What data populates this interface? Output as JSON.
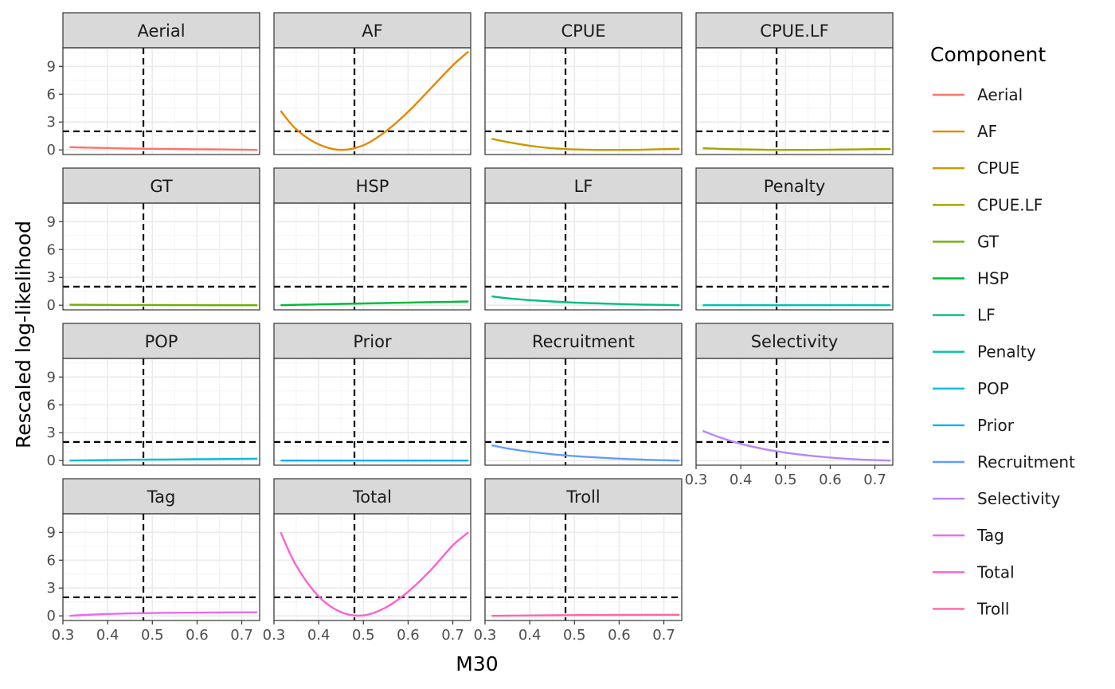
{
  "chart_data": {
    "type": "line",
    "xlabel": "M30",
    "ylabel": "Rescaled log-likelihood",
    "xlim": [
      0.3,
      0.74
    ],
    "ylim": [
      -0.5,
      11
    ],
    "x_ticks": [
      0.3,
      0.4,
      0.5,
      0.6,
      0.7
    ],
    "y_ticks": [
      0,
      3,
      6,
      9
    ],
    "x_tick_labels": [
      "0.3",
      "0.4",
      "0.5",
      "0.6",
      "0.7"
    ],
    "y_tick_labels": [
      "0",
      "3",
      "6",
      "9"
    ],
    "reference_lines": {
      "vertical_x": 0.48,
      "horizontal_y": 2,
      "style": "dashed",
      "color": "#000000"
    },
    "grid": true,
    "facet_layout": {
      "ncol": 4,
      "nrow": 4
    },
    "legend": {
      "title": "Component",
      "position": "right"
    },
    "x": [
      0.315,
      0.35,
      0.4,
      0.45,
      0.5,
      0.55,
      0.6,
      0.65,
      0.7,
      0.735
    ],
    "series": [
      {
        "name": "Aerial",
        "color": "#F8766D",
        "values": [
          0.3,
          0.25,
          0.2,
          0.15,
          0.12,
          0.1,
          0.07,
          0.05,
          0.02,
          0.0
        ]
      },
      {
        "name": "AF",
        "color": "#E58700",
        "values": [
          4.2,
          2.2,
          0.6,
          0.0,
          0.5,
          2.0,
          4.1,
          6.6,
          9.1,
          10.6
        ]
      },
      {
        "name": "CPUE",
        "color": "#C99800",
        "values": [
          1.2,
          0.85,
          0.45,
          0.18,
          0.05,
          0.0,
          0.0,
          0.02,
          0.08,
          0.12
        ]
      },
      {
        "name": "CPUE.LF",
        "color": "#A3A500",
        "values": [
          0.18,
          0.12,
          0.06,
          0.02,
          0.0,
          0.0,
          0.02,
          0.05,
          0.08,
          0.1
        ]
      },
      {
        "name": "GT",
        "color": "#6BB100",
        "values": [
          0.05,
          0.04,
          0.03,
          0.02,
          0.02,
          0.01,
          0.01,
          0.0,
          0.0,
          0.0
        ]
      },
      {
        "name": "HSP",
        "color": "#00BA38",
        "values": [
          0.0,
          0.04,
          0.09,
          0.14,
          0.19,
          0.24,
          0.28,
          0.33,
          0.37,
          0.4
        ]
      },
      {
        "name": "LF",
        "color": "#00BF7D",
        "values": [
          0.95,
          0.75,
          0.55,
          0.4,
          0.28,
          0.2,
          0.13,
          0.07,
          0.03,
          0.0
        ]
      },
      {
        "name": "Penalty",
        "color": "#00C0AF",
        "values": [
          0,
          0,
          0,
          0,
          0,
          0,
          0,
          0,
          0,
          0
        ]
      },
      {
        "name": "POP",
        "color": "#00BCD8",
        "values": [
          0.0,
          0.02,
          0.05,
          0.08,
          0.1,
          0.12,
          0.14,
          0.16,
          0.18,
          0.2
        ]
      },
      {
        "name": "Prior",
        "color": "#00B0F6",
        "values": [
          0,
          0,
          0,
          0,
          0,
          0,
          0,
          0,
          0,
          0
        ]
      },
      {
        "name": "Recruitment",
        "color": "#619CFF",
        "values": [
          1.65,
          1.3,
          0.95,
          0.68,
          0.48,
          0.33,
          0.2,
          0.1,
          0.03,
          0.0
        ]
      },
      {
        "name": "Selectivity",
        "color": "#B983FF",
        "values": [
          3.2,
          2.55,
          1.8,
          1.25,
          0.85,
          0.55,
          0.32,
          0.15,
          0.05,
          0.0
        ]
      },
      {
        "name": "Tag",
        "color": "#E76BF3",
        "values": [
          0.0,
          0.1,
          0.2,
          0.26,
          0.3,
          0.33,
          0.35,
          0.37,
          0.38,
          0.38
        ]
      },
      {
        "name": "Total",
        "color": "#FD61D1",
        "values": [
          9.0,
          5.4,
          2.1,
          0.4,
          0.05,
          0.9,
          2.6,
          4.9,
          7.6,
          9.0
        ]
      },
      {
        "name": "Troll",
        "color": "#FF67A4",
        "values": [
          0.0,
          0.02,
          0.04,
          0.06,
          0.08,
          0.09,
          0.1,
          0.11,
          0.12,
          0.12
        ]
      }
    ]
  }
}
